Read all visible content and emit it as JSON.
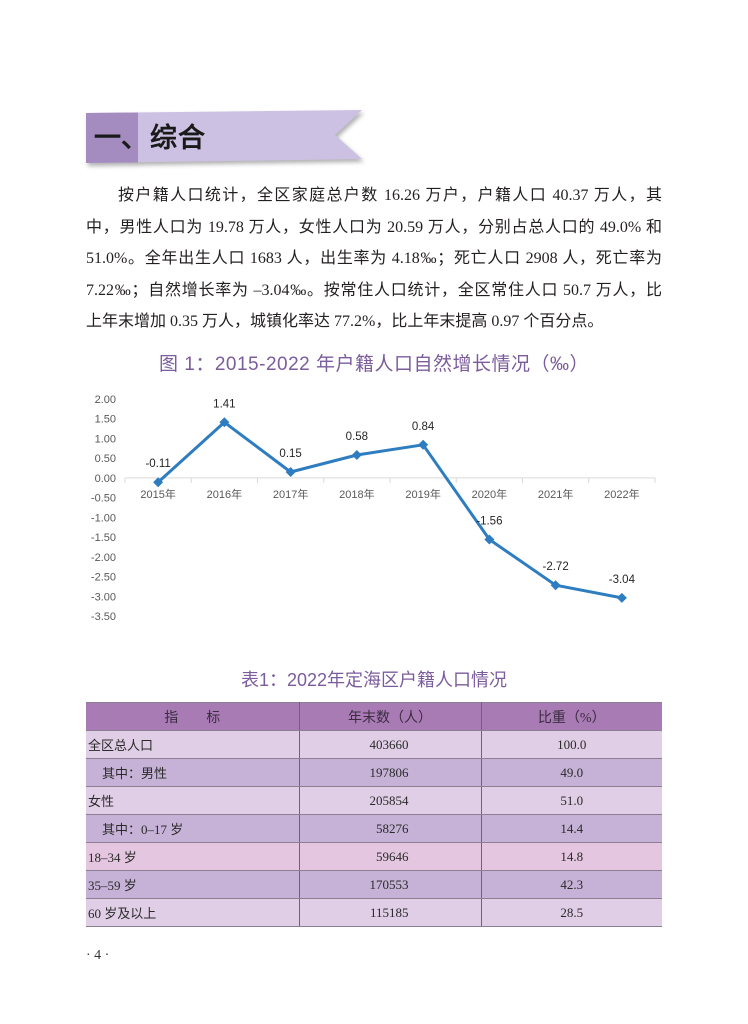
{
  "section": {
    "number": "一、",
    "title": "综合",
    "colors": {
      "ribbon_dark": "#a48cc0",
      "ribbon_light": "#cdc1e3"
    }
  },
  "body": {
    "lines": [
      "按户籍人口统计，全区家庭总户数 16.26 万户，户籍人口 40.37 万人，其",
      "中，男性人口为 19.78 万人，女性人口为 20.59 万人，分别占总人口的 49.0% 和",
      "51.0%。全年出生人口 1683 人，出生率为 4.18‰；死亡人口 2908 人，死亡率为",
      "7.22‰；自然增长率为 –3.04‰。按常住人口统计，全区常住人口 50.7 万人，比",
      "上年末增加 0.35 万人，城镇化率达 77.2%，比上年末提高 0.97 个百分点。"
    ]
  },
  "chart_title": "图 1：2015-2022 年户籍人口自然增长情况（‰）",
  "chart_data": {
    "type": "line",
    "title": "图 1：2015-2022 年户籍人口自然增长情况（‰）",
    "xlabel": "",
    "ylabel": "",
    "categories": [
      "2015年",
      "2016年",
      "2017年",
      "2018年",
      "2019年",
      "2020年",
      "2021年",
      "2022年"
    ],
    "series": [
      {
        "name": "户籍人口自然增长率（‰）",
        "values": [
          -0.11,
          1.41,
          0.15,
          0.58,
          0.84,
          -1.56,
          -2.72,
          -3.04
        ],
        "color": "#2e7dc0"
      }
    ],
    "data_labels": [
      "-0.11",
      "1.41",
      "0.15",
      "0.58",
      "0.84",
      "-1.56",
      "-2.72",
      "-3.04"
    ],
    "yticks": [
      2.0,
      1.5,
      1.0,
      0.5,
      0.0,
      -0.5,
      -1.0,
      -1.5,
      -2.0,
      -2.5,
      -3.0,
      -3.5
    ],
    "ylim": [
      -3.5,
      2.0
    ],
    "grid": false,
    "legend": "none",
    "marker": "diamond"
  },
  "table": {
    "title": "表1：2022年定海区户籍人口情况",
    "headers": [
      "指　　标",
      "年末数（人）",
      "比重（%）"
    ],
    "rows": [
      {
        "label": "全区总人口",
        "count": "403660",
        "share": "100.0",
        "indent": false
      },
      {
        "label": "其中：男性",
        "count": "197806",
        "share": "49.0",
        "indent": true
      },
      {
        "label": "女性",
        "count": "205854",
        "share": "51.0",
        "indent": false
      },
      {
        "label": "其中：0–17 岁",
        "count": "58276",
        "share": "14.4",
        "indent": true
      },
      {
        "label": "18–34 岁",
        "count": "59646",
        "share": "14.8",
        "indent": false
      },
      {
        "label": "35–59 岁",
        "count": "170553",
        "share": "42.3",
        "indent": false
      },
      {
        "label": "60 岁及以上",
        "count": "115185",
        "share": "28.5",
        "indent": false
      }
    ],
    "colors": {
      "header": "#a97bb5",
      "row_light": "#e0cde6",
      "row_dark": "#c6b2d7",
      "row_pink": "#e4c6e0"
    }
  },
  "footer": {
    "page_number": "· 4 ·"
  }
}
